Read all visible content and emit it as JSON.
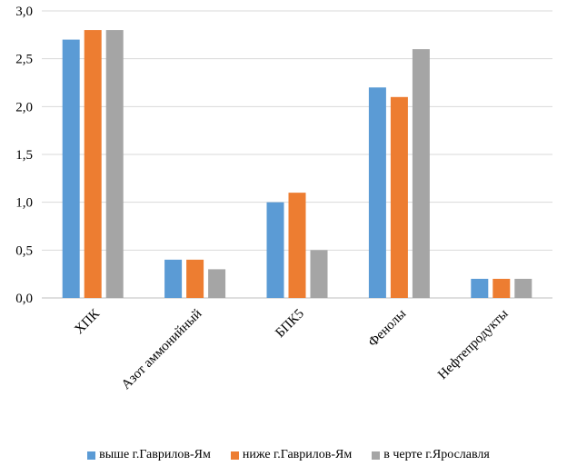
{
  "chart_data": {
    "type": "bar",
    "title": "",
    "xlabel": "",
    "ylabel": "",
    "ylim": [
      0,
      3.0
    ],
    "yticks": [
      "0,0",
      "0,5",
      "1,0",
      "1,5",
      "2,0",
      "2,5",
      "3,0"
    ],
    "ytick_values": [
      0,
      0.5,
      1.0,
      1.5,
      2.0,
      2.5,
      3.0
    ],
    "grid": true,
    "legend_position": "bottom",
    "categories": [
      "ХПК",
      "Азот аммонийный",
      "БПК5",
      "Фенолы",
      "Нефтепродукты"
    ],
    "series": [
      {
        "name": "выше г.Гаврилов-Ям",
        "color": "#5B9BD5",
        "values": [
          2.7,
          0.4,
          1.0,
          2.2,
          0.2
        ]
      },
      {
        "name": "ниже г.Гаврилов-Ям",
        "color": "#ED7D31",
        "values": [
          2.8,
          0.4,
          1.1,
          2.1,
          0.2
        ]
      },
      {
        "name": "в черте г.Ярославля",
        "color": "#A5A5A5",
        "values": [
          2.8,
          0.3,
          0.5,
          2.6,
          0.2
        ]
      }
    ]
  }
}
